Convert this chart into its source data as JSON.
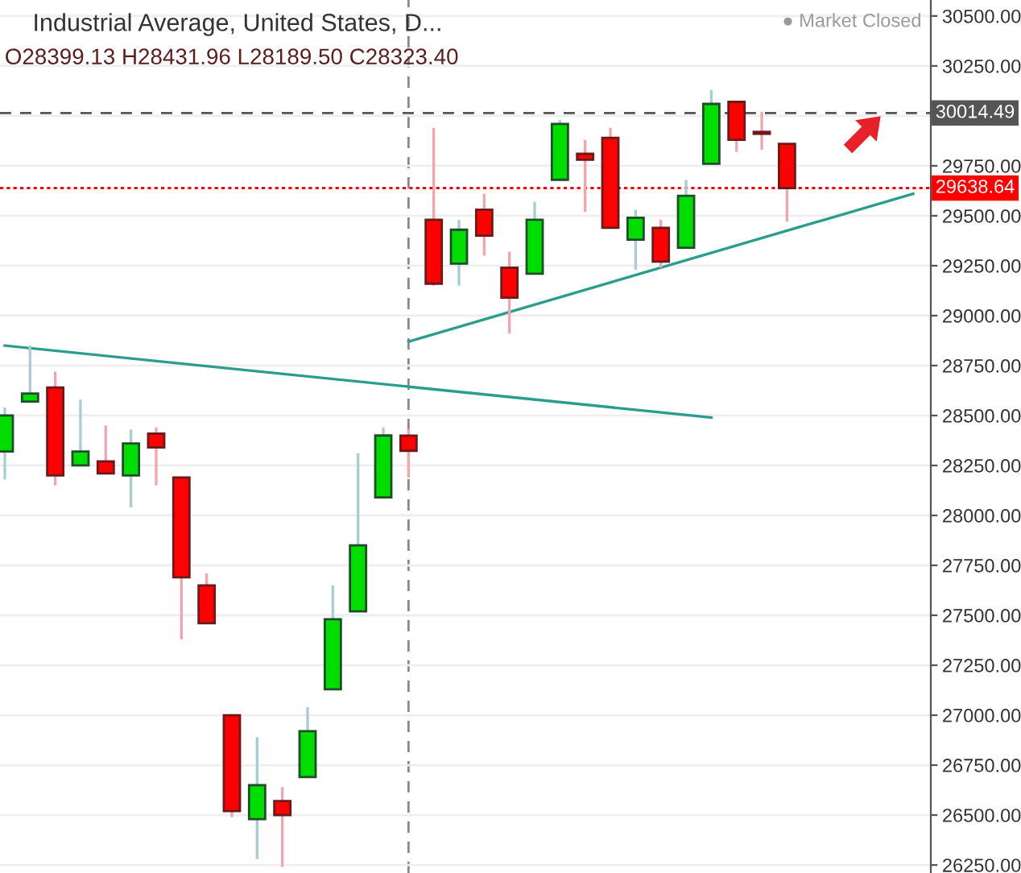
{
  "chart_data": {
    "type": "candlestick",
    "title": "Industrial Average, United States, D...",
    "categories": [
      null,
      null,
      null,
      null,
      null,
      null,
      null,
      null,
      null,
      null,
      null,
      null,
      null,
      null,
      null,
      null,
      null,
      null,
      null,
      null,
      null,
      null,
      null,
      null,
      null,
      null,
      null,
      null,
      null,
      null,
      null,
      null,
      null,
      null,
      null,
      null,
      null
    ],
    "ohlc": [
      [
        28320,
        28540,
        28180,
        28500
      ],
      [
        28570,
        28850,
        28570,
        28610
      ],
      [
        28640,
        28720,
        28150,
        28200
      ],
      [
        28250,
        28580,
        28250,
        28320
      ],
      [
        28270,
        28450,
        28210,
        28210
      ],
      [
        28200,
        28430,
        28040,
        28360
      ],
      [
        28410,
        28440,
        28150,
        28340
      ],
      [
        28190,
        28190,
        27380,
        27690
      ],
      [
        27650,
        27710,
        27460,
        27460
      ],
      [
        27000,
        27000,
        26490,
        26520
      ],
      [
        26480,
        26890,
        26280,
        26650
      ],
      [
        26570,
        26640,
        26240,
        26500
      ],
      [
        26690,
        27040,
        26690,
        26920
      ],
      [
        27130,
        27650,
        27130,
        27480
      ],
      [
        27520,
        28310,
        27520,
        27850
      ],
      [
        28090,
        28440,
        28090,
        28400
      ],
      [
        28399.13,
        28431.96,
        28189.5,
        28323.4
      ],
      [
        29480,
        29940,
        29150,
        29160
      ],
      [
        29260,
        29480,
        29150,
        29430
      ],
      [
        29530,
        29610,
        29300,
        29400
      ],
      [
        29240,
        29320,
        28910,
        29090
      ],
      [
        29210,
        29570,
        29210,
        29480
      ],
      [
        29680,
        29980,
        29680,
        29960
      ],
      [
        29810,
        29880,
        29520,
        29780
      ],
      [
        29890,
        29940,
        29440,
        29440
      ],
      [
        29380,
        29530,
        29230,
        29490
      ],
      [
        29440,
        29480,
        29240,
        29270
      ],
      [
        29340,
        29680,
        29340,
        29600
      ],
      [
        29760,
        30130,
        29760,
        30060
      ],
      [
        30070,
        30070,
        29820,
        29880
      ],
      [
        29920,
        30020,
        29830,
        29910
      ],
      [
        29860,
        29860,
        29470,
        29638.64
      ],
      null,
      null,
      null,
      null,
      null
    ],
    "colors": [
      "#00dd00",
      "#00dd00",
      "#ff0000",
      "#00dd00",
      "#ff0000",
      "#00dd00",
      "#ff0000",
      "#ff0000",
      "#ff0000",
      "#ff0000",
      "#00dd00",
      "#ff0000",
      "#00dd00",
      "#00dd00",
      "#00dd00",
      "#00dd00",
      "#ff0000",
      "#ff0000",
      "#00dd00",
      "#ff0000",
      "#ff0000",
      "#00dd00",
      "#00dd00",
      "#ff0000",
      "#ff0000",
      "#00dd00",
      "#ff0000",
      "#00dd00",
      "#00dd00",
      "#ff0000",
      "#ff0000",
      "#ff0000",
      null,
      null,
      null,
      null,
      null
    ],
    "series": [
      {
        "type": "line",
        "color": "#2a9d8f",
        "values": [
          28850,
          null,
          null,
          null,
          null,
          null,
          null,
          null,
          null,
          null,
          null,
          null,
          null,
          null,
          null,
          null,
          null,
          null,
          null,
          null,
          null,
          null,
          null,
          null,
          null,
          null,
          null,
          null,
          28490,
          null,
          null,
          null,
          null,
          null,
          null,
          null,
          null
        ]
      },
      {
        "type": "line",
        "color": "#2a9d8f",
        "values": [
          null,
          null,
          null,
          null,
          null,
          null,
          null,
          null,
          null,
          null,
          null,
          null,
          null,
          null,
          null,
          null,
          28870,
          null,
          null,
          null,
          null,
          null,
          null,
          null,
          null,
          null,
          null,
          null,
          null,
          null,
          null,
          null,
          null,
          null,
          null,
          null,
          29610
        ]
      }
    ],
    "ylim": [
      26210,
      30580
    ],
    "yticks": [
      {
        "value": 26250,
        "label": "26250.00"
      },
      {
        "value": 26500,
        "label": "26500.00"
      },
      {
        "value": 26750,
        "label": "26750.00"
      },
      {
        "value": 27000,
        "label": "27000.00"
      },
      {
        "value": 27250,
        "label": "27250.00"
      },
      {
        "value": 27500,
        "label": "27500.00"
      },
      {
        "value": 27750,
        "label": "27750.00"
      },
      {
        "value": 28000,
        "label": "28000.00"
      },
      {
        "value": 28250,
        "label": "28250.00"
      },
      {
        "value": 28500,
        "label": "28500.00"
      },
      {
        "value": 28750,
        "label": "28750.00"
      },
      {
        "value": 29000,
        "label": "29000.00"
      },
      {
        "value": 29250,
        "label": "29250.00"
      },
      {
        "value": 29500,
        "label": "29500.00"
      },
      {
        "value": 29750,
        "label": "29750.00"
      },
      {
        "value": 30000,
        "label": null
      },
      {
        "value": 30250,
        "label": "30250.00"
      },
      {
        "value": 30500,
        "label": "30500.00"
      }
    ],
    "ref_lines": [
      {
        "axis": "y",
        "value": 30014.49,
        "label": "30014.49",
        "color": "#555555",
        "line_style": "dashed"
      },
      {
        "axis": "y",
        "value": 29638.64,
        "label": "29638.64",
        "color": "#ff0000",
        "line_style": "dotted"
      }
    ],
    "annotations": [
      "O28399.13 H28431.96 L28189.50 C28323.40",
      "● Market Closed"
    ],
    "grid": "y",
    "tick_labels": "y"
  }
}
